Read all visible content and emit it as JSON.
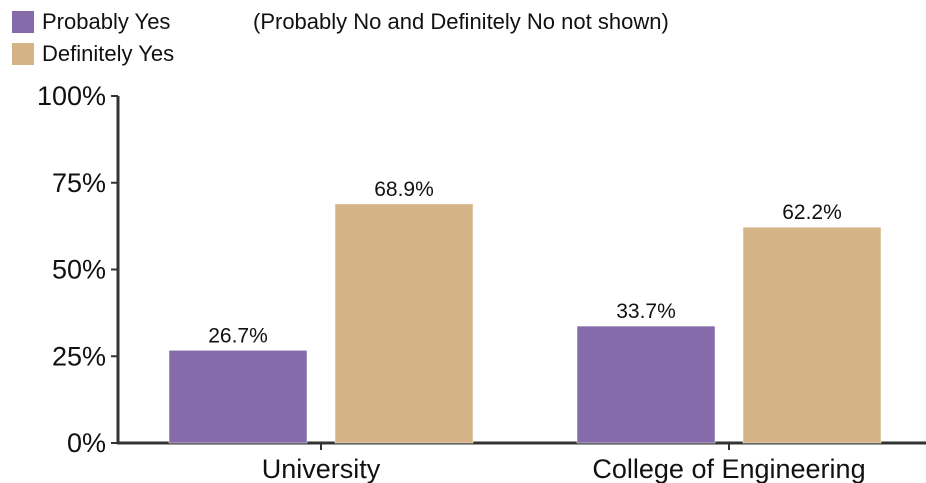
{
  "chart_data": {
    "type": "bar",
    "categories": [
      "University",
      "College of Engineering"
    ],
    "series": [
      {
        "name": "Probably Yes",
        "values": [
          26.7,
          33.7
        ],
        "color": "#866baa"
      },
      {
        "name": "Definitely Yes",
        "values": [
          68.9,
          62.2
        ],
        "color": "#d4b486"
      }
    ],
    "data_labels": [
      [
        "26.7%",
        "33.7%"
      ],
      [
        "68.9%",
        "62.2%"
      ]
    ],
    "note": "(Probably No and Definitely No not shown)",
    "yticks": [
      "0%",
      "25%",
      "50%",
      "75%",
      "100%"
    ],
    "ytick_values": [
      0,
      25,
      50,
      75,
      100
    ],
    "ylim": [
      0,
      100
    ],
    "grid": false,
    "legend_position": "top-left"
  }
}
